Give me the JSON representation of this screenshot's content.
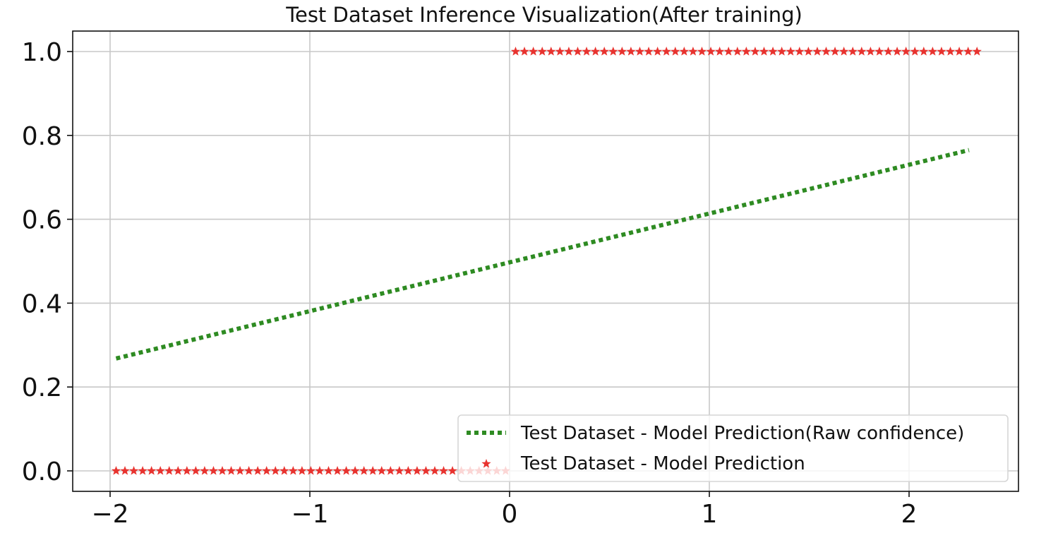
{
  "chart_data": {
    "type": "line",
    "title": "Test Dataset Inference Visualization(After training)",
    "xlabel": "",
    "ylabel": "",
    "xlim": [
      -2.2,
      2.55
    ],
    "ylim": [
      -0.05,
      1.05
    ],
    "grid": true,
    "legend_position": "lower right",
    "xticks": [
      -2,
      -1,
      0,
      1,
      2
    ],
    "xtick_labels": [
      "−2",
      "−1",
      "0",
      "1",
      "2"
    ],
    "yticks": [
      0.0,
      0.2,
      0.4,
      0.6,
      0.8,
      1.0
    ],
    "ytick_labels": [
      "0.0",
      "0.2",
      "0.4",
      "0.6",
      "0.8",
      "1.0"
    ],
    "series": [
      {
        "name": "Test Dataset - Model Prediction(Raw confidence)",
        "style": "dotted",
        "color": "#2e8b22",
        "x": [
          -1.97,
          2.3
        ],
        "y": [
          0.268,
          0.765
        ]
      },
      {
        "name": "Test Dataset - Model Prediction",
        "style": "star",
        "color": "#e8332f",
        "segments": [
          {
            "x_start": -1.97,
            "x_end": -0.02,
            "count": 45,
            "y": 0.0
          },
          {
            "x_start": 0.03,
            "x_end": 2.34,
            "count": 53,
            "y": 1.0
          }
        ]
      }
    ]
  }
}
